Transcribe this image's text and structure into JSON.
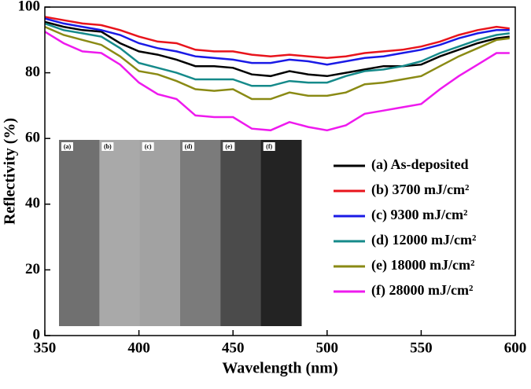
{
  "chart_data": {
    "type": "line",
    "x_label": "Wavelength (nm)",
    "y_label": "Reflectivity (%)",
    "x": [
      350,
      360,
      370,
      380,
      390,
      400,
      410,
      420,
      430,
      440,
      450,
      460,
      470,
      480,
      490,
      500,
      510,
      520,
      530,
      540,
      550,
      560,
      570,
      580,
      590,
      597
    ],
    "xlim": [
      350,
      600
    ],
    "xticks": [
      350,
      400,
      450,
      500,
      550,
      600
    ],
    "ylim": [
      0,
      100
    ],
    "yticks": [
      0,
      20,
      40,
      60,
      80,
      100
    ],
    "series": [
      {
        "name": "(a) As-deposited",
        "color": "#000000",
        "values": [
          95.5,
          94,
          93,
          92.5,
          89,
          86.5,
          85.5,
          84,
          82,
          82,
          81.5,
          79.5,
          79,
          80.5,
          79.5,
          79,
          80,
          81,
          82,
          82,
          82.5,
          85,
          87,
          89,
          90.5,
          91
        ]
      },
      {
        "name": "(b) 3700 mJ/cm²",
        "color": "#e8141c",
        "values": [
          97,
          96,
          95,
          94.5,
          93,
          91,
          89.5,
          89,
          87,
          86.5,
          86.5,
          85.5,
          85,
          85.5,
          85,
          84.5,
          85,
          86,
          86.5,
          87,
          88,
          89.5,
          91.5,
          93,
          94,
          93.5
        ]
      },
      {
        "name": "(c) 9300 mJ/cm²",
        "color": "#1a1ae6",
        "values": [
          96.5,
          95,
          94,
          93,
          91.5,
          89,
          87.5,
          86.5,
          85,
          84.5,
          84,
          83,
          83,
          84,
          83.5,
          82.5,
          83.5,
          84.5,
          85,
          86,
          87,
          88.5,
          90.5,
          92,
          93,
          93
        ]
      },
      {
        "name": "(d) 12000 mJ/cm²",
        "color": "#158a8a",
        "values": [
          95,
          93,
          92,
          91,
          87.5,
          83,
          81.5,
          80,
          78,
          78,
          78,
          76,
          76,
          77.5,
          77,
          77,
          79,
          80.5,
          81,
          82,
          83.5,
          86,
          88,
          90,
          91.5,
          92
        ]
      },
      {
        "name": "(e) 18000 mJ/cm²",
        "color": "#8a8a14",
        "values": [
          94,
          91.5,
          90,
          88.5,
          85,
          80.5,
          79.5,
          77.5,
          75,
          74.5,
          75,
          72,
          72,
          74,
          73,
          73,
          74,
          76.5,
          77,
          78,
          79,
          82,
          85,
          87.5,
          90,
          90.5
        ]
      },
      {
        "name": "(f) 28000 mJ/cm²",
        "color": "#ee1aee",
        "values": [
          92.5,
          89,
          86.5,
          86,
          82.5,
          77,
          73.5,
          72,
          67,
          66.5,
          66.5,
          63,
          62.5,
          65,
          63.5,
          62.5,
          64,
          67.5,
          68.5,
          69.5,
          70.5,
          75,
          79,
          82.5,
          86,
          86
        ]
      }
    ],
    "inset": {
      "labels": [
        "(a)",
        "(b)",
        "(c)",
        "(d)",
        "(e)",
        "(f)"
      ],
      "colors": [
        "#707070",
        "#a9a9a9",
        "#a2a2a2",
        "#7b7b7b",
        "#4b4b4b",
        "#232323"
      ]
    }
  }
}
